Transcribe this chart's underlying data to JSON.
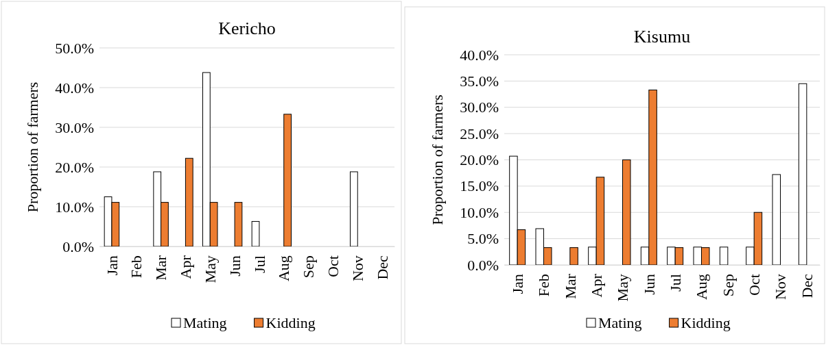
{
  "chart_data": [
    {
      "type": "bar",
      "title": "Kericho",
      "ylabel": "Proportion of farmers",
      "categories": [
        "Jan",
        "Feb",
        "Mar",
        "Apr",
        "May",
        "Jun",
        "Jul",
        "Aug",
        "Sep",
        "Oct",
        "Nov",
        "Dec"
      ],
      "series": [
        {
          "name": "Mating",
          "color": "#ffffff",
          "values": [
            12.5,
            0,
            18.8,
            0,
            43.8,
            0,
            6.3,
            0,
            0,
            0,
            18.8,
            0
          ]
        },
        {
          "name": "Kidding",
          "color": "#ed7d31",
          "values": [
            11.1,
            0,
            11.1,
            22.2,
            11.1,
            11.1,
            0,
            33.3,
            0,
            0,
            0,
            0
          ]
        }
      ],
      "ylim": [
        0,
        50
      ],
      "yticks": [
        {
          "value": 0,
          "label": "0.0%"
        },
        {
          "value": 10,
          "label": "10.0%"
        },
        {
          "value": 20,
          "label": "20.0%"
        },
        {
          "value": 30,
          "label": "30.0%"
        },
        {
          "value": 40,
          "label": "40.0%"
        },
        {
          "value": 50,
          "label": "50.0%"
        }
      ],
      "grid": "y",
      "legend": "bottom"
    },
    {
      "type": "bar",
      "title": "Kisumu",
      "ylabel": "Proportion of farmers",
      "categories": [
        "Jan",
        "Feb",
        "Mar",
        "Apr",
        "May",
        "Jun",
        "Jul",
        "Aug",
        "Sep",
        "Oct",
        "Nov",
        "Dec"
      ],
      "series": [
        {
          "name": "Mating",
          "color": "#ffffff",
          "values": [
            20.7,
            6.9,
            0,
            3.4,
            0,
            3.4,
            3.4,
            3.4,
            3.4,
            3.4,
            17.2,
            34.5
          ]
        },
        {
          "name": "Kidding",
          "color": "#ed7d31",
          "values": [
            6.7,
            3.3,
            3.3,
            16.7,
            20.0,
            33.3,
            3.3,
            3.3,
            0,
            10.0,
            0,
            0
          ]
        }
      ],
      "ylim": [
        0,
        40
      ],
      "yticks": [
        {
          "value": 0,
          "label": "0.0%"
        },
        {
          "value": 5,
          "label": "5.0%"
        },
        {
          "value": 10,
          "label": "10.0%"
        },
        {
          "value": 15,
          "label": "15.0%"
        },
        {
          "value": 20,
          "label": "20.0%"
        },
        {
          "value": 25,
          "label": "25.0%"
        },
        {
          "value": 30,
          "label": "30.0%"
        },
        {
          "value": 35,
          "label": "35.0%"
        },
        {
          "value": 40,
          "label": "40.0%"
        }
      ],
      "grid": "y",
      "legend": "bottom"
    }
  ]
}
